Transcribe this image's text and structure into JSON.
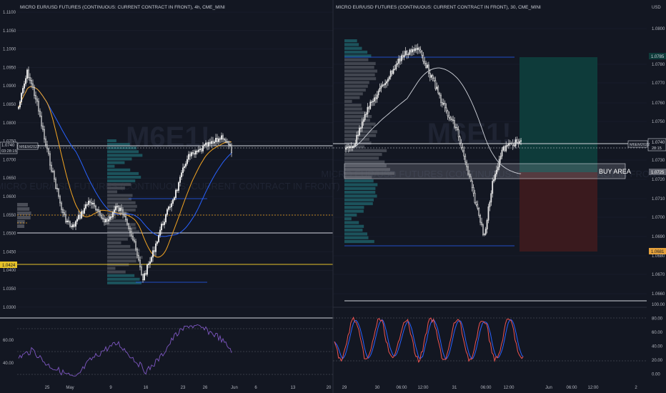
{
  "left_chart": {
    "title": "MICRO EUR/USD FUTURES (CONTINUOUS: CURRENT CONTRACT IN FRONT), 4h, CME_MINI",
    "watermark": "M6E1!",
    "watermark_sub": "MICRO EUR/USD FUTURES (CONTINUOUS: CURRENT CONTRACT IN FRONT)",
    "y_ticks": [
      "1.1100",
      "1.1050",
      "1.1000",
      "1.0950",
      "1.0900",
      "1.0850",
      "1.0800",
      "1.0750",
      "1.0700",
      "1.0650",
      "1.0600",
      "1.0550",
      "1.0500",
      "1.0450",
      "1.0400",
      "1.0350",
      "1.0300"
    ],
    "price_label": "1.0740",
    "countdown_label": "03:28:15",
    "symbol_label": "M6EM2022",
    "highlight_label": "1.0424",
    "rsi_ticks": [
      "60.00",
      "40.00"
    ],
    "x_ticks": [
      "25",
      "May",
      "9",
      "16",
      "23",
      "26",
      "Jun",
      "6",
      "13",
      "20"
    ],
    "colors": {
      "ma_blue": "#2962ff",
      "ma_orange": "#f5a623",
      "rsi": "#7e57c2",
      "yellow_line": "#e6c229"
    }
  },
  "right_chart": {
    "title": "MICRO EUR/USD FUTURES (CONTINUOUS: CURRENT CONTRACT IN FRONT), 30, CME_MINI",
    "watermark": "M6E1!, 30",
    "watermark_sub": "MICRO EUR/USD FUTURES (CONTINUOUS: CURRENT CONTRACT IN FRONT)",
    "currency": "USD",
    "y_ticks": [
      "1.0800",
      "1.0780",
      "1.0770",
      "1.0760",
      "1.0750",
      "1.0740",
      "1.0730",
      "1.0720",
      "1.0710",
      "1.0700",
      "1.0690",
      "1.0680",
      "1.0670",
      "1.0660"
    ],
    "target_label": "1.0785",
    "price_label": "1.0740",
    "countdown_label": "28:15",
    "entry_label": "1.0725",
    "stop_label": "1.0681",
    "symbol_label": "M6EM2022",
    "annotation": "BUY AREA",
    "osc_ticks": [
      "100.00",
      "80.00",
      "60.00",
      "40.00",
      "20.00",
      "0.00"
    ],
    "x_ticks": [
      "29",
      "30",
      "06:00",
      "12:00",
      "31",
      "06:00",
      "12:00",
      "Jun",
      "06:00",
      "12:00",
      "2"
    ],
    "colors": {
      "target_zone": "#0e3b3a",
      "stop_zone": "#3a1a1e",
      "k_line": "#ef5350",
      "d_line": "#2962ff"
    }
  }
}
